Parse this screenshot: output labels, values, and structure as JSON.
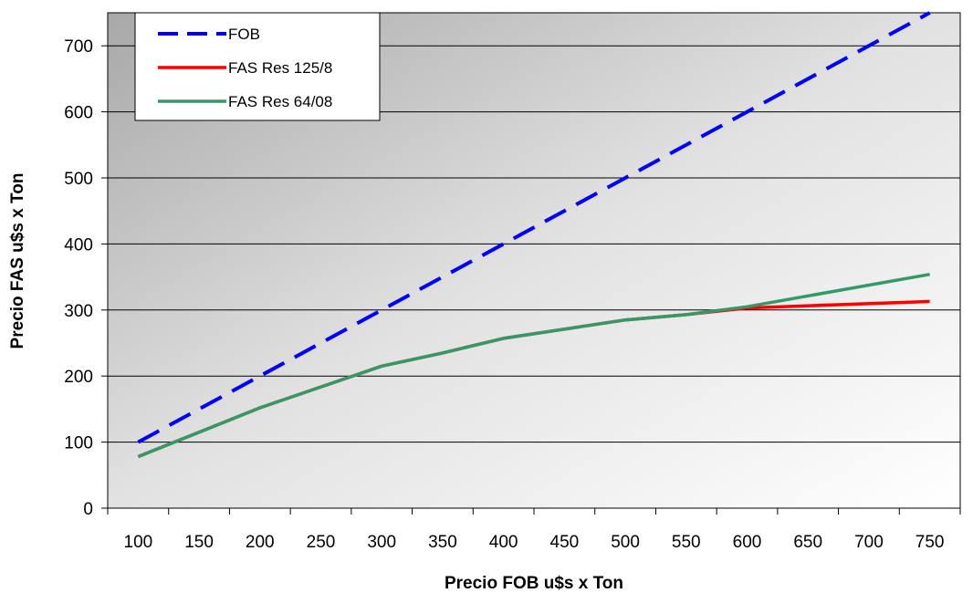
{
  "chart_data": {
    "type": "line",
    "title": "",
    "xlabel": "Precio FOB u$s x Ton",
    "ylabel": "Precio FAS u$s x Ton",
    "x": [
      100,
      150,
      200,
      250,
      300,
      350,
      400,
      450,
      500,
      550,
      600,
      650,
      700,
      750
    ],
    "categories": [
      "100",
      "150",
      "200",
      "250",
      "300",
      "350",
      "400",
      "450",
      "500",
      "550",
      "600",
      "650",
      "700",
      "750"
    ],
    "ylim": [
      0,
      750
    ],
    "yticks": [
      "0",
      "100",
      "200",
      "300",
      "400",
      "500",
      "600",
      "700"
    ],
    "grid": "horizontal",
    "legend_position": "top-left",
    "series": [
      {
        "name": "FOB",
        "color": "#0000ff",
        "style": "dashed",
        "points": [
          [
            100,
            100
          ],
          [
            200,
            200
          ],
          [
            300,
            300
          ],
          [
            400,
            400
          ],
          [
            500,
            500
          ],
          [
            600,
            600
          ],
          [
            750,
            750
          ]
        ]
      },
      {
        "name": "FAS Res 125/8",
        "color": "#ff0000",
        "style": "solid",
        "points": [
          [
            100,
            78
          ],
          [
            200,
            152
          ],
          [
            300,
            215
          ],
          [
            350,
            235
          ],
          [
            400,
            257
          ],
          [
            500,
            285
          ],
          [
            550,
            293
          ],
          [
            600,
            303
          ],
          [
            750,
            313
          ]
        ]
      },
      {
        "name": "FAS Res 64/08",
        "color": "#339966",
        "style": "solid",
        "points": [
          [
            100,
            78
          ],
          [
            200,
            152
          ],
          [
            300,
            215
          ],
          [
            350,
            235
          ],
          [
            400,
            257
          ],
          [
            500,
            285
          ],
          [
            550,
            293
          ],
          [
            600,
            305
          ],
          [
            750,
            354
          ]
        ]
      }
    ]
  }
}
